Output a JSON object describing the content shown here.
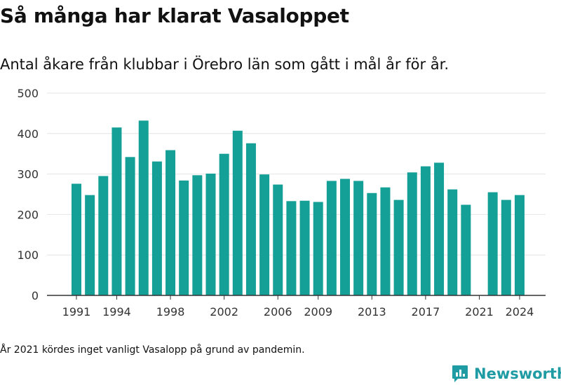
{
  "title": "Så många har klarat Vasaloppet",
  "subtitle": "Antal åkare från klubbar i Örebro län som gått i mål år för år.",
  "note": "År 2021 kördes inget vanligt Vasalopp på grund av pandemin.",
  "brand": {
    "name": "Newsworthy",
    "icon": "newsworthy-logo-icon"
  },
  "colors": {
    "bar": "#14a096",
    "grid": "#e4e4e4",
    "axis": "#333333"
  },
  "chart_data": {
    "type": "bar",
    "title": "Så många har klarat Vasaloppet",
    "subtitle": "Antal åkare från klubbar i Örebro län som gått i mål år för år.",
    "xlabel": "",
    "ylabel": "",
    "ylim": [
      0,
      500
    ],
    "yticks": [
      0,
      100,
      200,
      300,
      400,
      500
    ],
    "xticks": [
      1991,
      1994,
      1998,
      2002,
      2006,
      2009,
      2013,
      2017,
      2021,
      2024
    ],
    "grid": true,
    "categories": [
      1991,
      1992,
      1993,
      1994,
      1995,
      1996,
      1997,
      1998,
      1999,
      2000,
      2001,
      2002,
      2003,
      2004,
      2005,
      2006,
      2007,
      2008,
      2009,
      2010,
      2011,
      2012,
      2013,
      2014,
      2015,
      2016,
      2017,
      2018,
      2019,
      2020,
      2021,
      2022,
      2023,
      2024
    ],
    "values": [
      276,
      248,
      295,
      415,
      342,
      432,
      331,
      359,
      284,
      297,
      301,
      350,
      407,
      376,
      299,
      274,
      233,
      234,
      231,
      283,
      288,
      283,
      253,
      267,
      236,
      304,
      319,
      328,
      262,
      224,
      null,
      255,
      236,
      248
    ]
  }
}
